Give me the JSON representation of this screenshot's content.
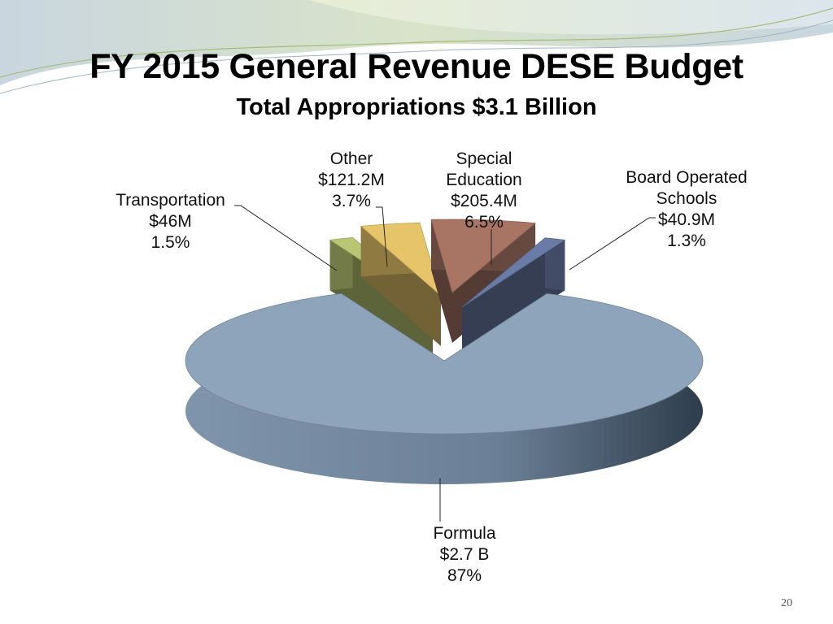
{
  "slide": {
    "title": "FY 2015 General Revenue DESE Budget",
    "subtitle": "Total Appropriations  $3.1 Billion",
    "page_number": "20"
  },
  "chart_data": {
    "type": "pie",
    "style": "3d-exploded",
    "title": "FY 2015 General Revenue DESE Budget",
    "subtitle": "Total Appropriations  $3.1 Billion",
    "slices": [
      {
        "name": "Formula",
        "label_lines": [
          "Formula",
          "$2.7 B",
          "87%"
        ],
        "amount": "$2.7 B",
        "percent": 87.0,
        "color": "#8ea4bb"
      },
      {
        "name": "Transportation",
        "label_lines": [
          "Transportation",
          "$46M",
          "1.5%"
        ],
        "amount": "$46M",
        "percent": 1.5,
        "color": "#b9c774"
      },
      {
        "name": "Other",
        "label_lines": [
          "Other",
          "$121.2M",
          "3.7%"
        ],
        "amount": "$121.2M",
        "percent": 3.7,
        "color": "#e6c46a"
      },
      {
        "name": "Special Education",
        "label_lines": [
          "Special",
          "Education",
          "$205.4M",
          "6.5%"
        ],
        "amount": "$205.4M",
        "percent": 6.5,
        "color": "#a87565"
      },
      {
        "name": "Board Operated Schools",
        "label_lines": [
          "Board Operated",
          "Schools",
          "$40.9M",
          "1.3%"
        ],
        "amount": "$40.9M",
        "percent": 1.3,
        "color": "#6a7ba6"
      }
    ],
    "legend": "none",
    "labels": "outside-with-leader-lines"
  }
}
